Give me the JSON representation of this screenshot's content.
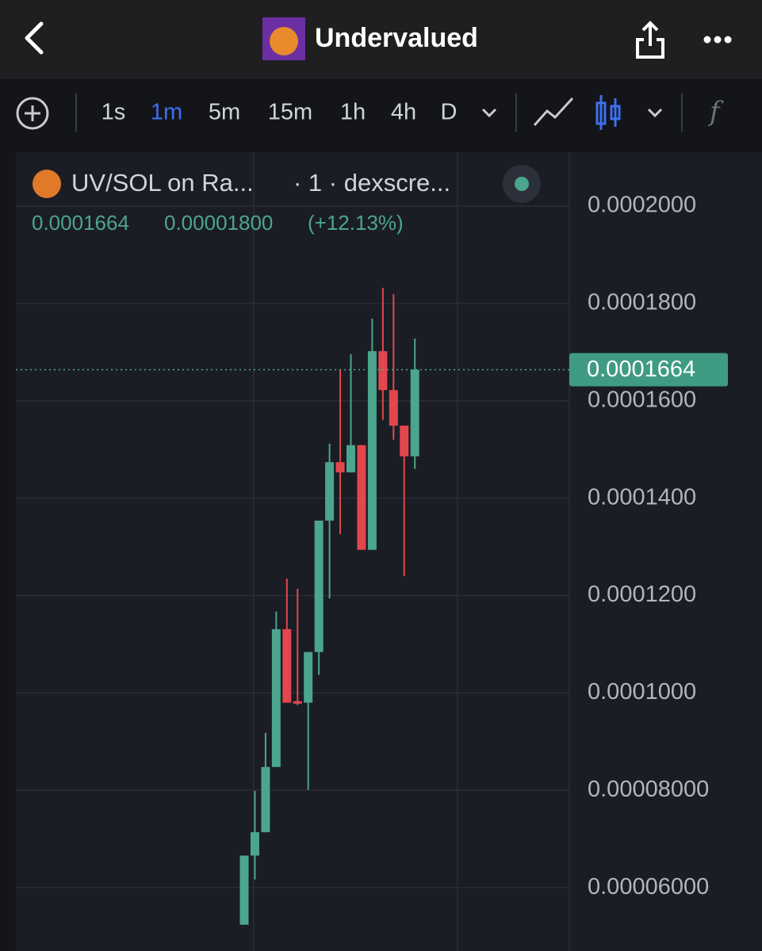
{
  "header": {
    "title": "Undervalued"
  },
  "toolbar": {
    "intervals": [
      "1s",
      "1m",
      "5m",
      "15m",
      "1h",
      "4h",
      "D"
    ],
    "active_interval": 1
  },
  "chart_data": {
    "type": "candlestick",
    "symbol": "UV/SOL on Ra...",
    "source": "· 1 · dexscre...",
    "last_price": 0.0001664,
    "change": "0.00001800",
    "change_percent": "(+12.13%)",
    "up_color": "#4ca58d",
    "down_color": "#e2474d",
    "categories": [
      null,
      null,
      null,
      null,
      null,
      null,
      null,
      null,
      null,
      null,
      null,
      null,
      null,
      null,
      null,
      null,
      null
    ],
    "open": [
      5.24e-05,
      6.66e-05,
      7.14e-05,
      8.48e-05,
      0.0001131,
      9.83e-05,
      9.8e-05,
      0.0001084,
      0.0001354,
      0.0001474,
      0.0001453,
      0.0001509,
      0.0001294,
      0.0001702,
      0.0001622,
      0.0001549,
      0.0001486
    ],
    "high": [
      6.66e-05,
      7.99e-05,
      9.18e-05,
      0.0001167,
      0.0001235,
      0.0001214,
      0.0001084,
      0.0001354,
      0.0001512,
      0.0001665,
      0.0001696,
      0.0001509,
      0.0001769,
      0.0001832,
      0.0001819,
      0.0001549,
      0.0001728
    ],
    "low": [
      5.24e-05,
      6.17e-05,
      7.14e-05,
      8.48e-05,
      9.8e-05,
      9.75e-05,
      8.01e-05,
      0.0001037,
      0.0001194,
      0.0001326,
      0.0001453,
      0.0001294,
      0.0001294,
      0.0001561,
      0.000152,
      0.000124,
      0.000146
    ],
    "close": [
      6.66e-05,
      7.14e-05,
      8.48e-05,
      0.0001131,
      9.8e-05,
      9.78e-05,
      0.0001084,
      0.0001354,
      0.0001474,
      0.0001453,
      0.0001509,
      0.0001294,
      0.0001702,
      0.0001622,
      0.0001549,
      0.0001486,
      0.0001664
    ],
    "ylim": [
      4.7e-05,
      0.0002114
    ],
    "yticks": [
      {
        "value": 6e-05,
        "label": "0.00006000"
      },
      {
        "value": 8e-05,
        "label": "0.00008000"
      },
      {
        "value": 0.0001,
        "label": "0.0001000"
      },
      {
        "value": 0.00012,
        "label": "0.0001200"
      },
      {
        "value": 0.00014,
        "label": "0.0001400"
      },
      {
        "value": 0.00016,
        "label": "0.0001600"
      },
      {
        "value": 0.00018,
        "label": "0.0001800"
      },
      {
        "value": 0.0002,
        "label": "0.0002000"
      }
    ],
    "grid": true
  }
}
